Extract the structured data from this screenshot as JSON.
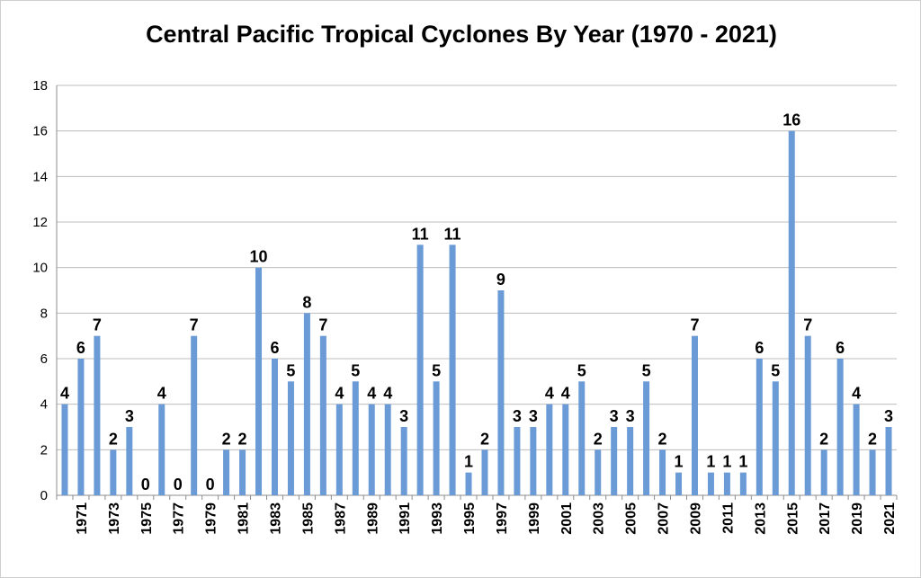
{
  "chart_data": {
    "type": "bar",
    "title": "Central Pacific Tropical Cyclones By Year (1970 - 2021)",
    "xlabel": "",
    "ylabel": "",
    "ylim": [
      0,
      18
    ],
    "yticks": [
      0,
      2,
      4,
      6,
      8,
      10,
      12,
      14,
      16,
      18
    ],
    "grid": true,
    "bar_color": "#6b9bd6",
    "categories": [
      1970,
      1971,
      1972,
      1973,
      1974,
      1975,
      1976,
      1977,
      1978,
      1979,
      1980,
      1981,
      1982,
      1983,
      1984,
      1985,
      1986,
      1987,
      1988,
      1989,
      1990,
      1991,
      1992,
      1993,
      1994,
      1995,
      1996,
      1997,
      1998,
      1999,
      2000,
      2001,
      2002,
      2003,
      2004,
      2005,
      2006,
      2007,
      2008,
      2009,
      2010,
      2011,
      2012,
      2013,
      2014,
      2015,
      2016,
      2017,
      2018,
      2019,
      2020,
      2021
    ],
    "x_tick_labels": [
      1971,
      1973,
      1975,
      1977,
      1979,
      1981,
      1983,
      1985,
      1987,
      1989,
      1991,
      1993,
      1995,
      1997,
      1999,
      2001,
      2003,
      2005,
      2007,
      2009,
      2011,
      2013,
      2015,
      2017,
      2019,
      2021
    ],
    "values": [
      4,
      6,
      7,
      2,
      3,
      0,
      4,
      0,
      7,
      0,
      2,
      2,
      10,
      6,
      5,
      8,
      7,
      4,
      5,
      4,
      4,
      3,
      11,
      5,
      11,
      1,
      2,
      9,
      3,
      3,
      4,
      4,
      5,
      2,
      3,
      3,
      5,
      2,
      1,
      7,
      1,
      1,
      1,
      6,
      5,
      16,
      7,
      2,
      6,
      4,
      2,
      3
    ]
  }
}
